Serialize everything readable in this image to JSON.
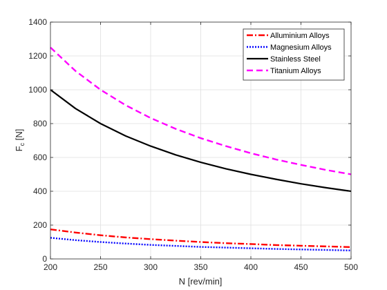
{
  "chart_data": {
    "type": "line",
    "xlabel": "N [rev/min]",
    "ylabel_main": "F",
    "ylabel_sub": "c",
    "ylabel_unit": " [N]",
    "xlim": [
      200,
      500
    ],
    "ylim": [
      0,
      1400
    ],
    "xticks": [
      200,
      250,
      300,
      350,
      400,
      450,
      500
    ],
    "yticks": [
      0,
      200,
      400,
      600,
      800,
      1000,
      1200,
      1400
    ],
    "grid": true,
    "legend_position": "top-right",
    "x": [
      200,
      225,
      250,
      275,
      300,
      325,
      350,
      375,
      400,
      425,
      450,
      475,
      500
    ],
    "series": [
      {
        "name": "Alluminium Alloys",
        "color": "#ff0000",
        "style": "dashdot",
        "values": [
          175,
          156,
          140,
          127,
          117,
          108,
          100,
          93,
          88,
          82,
          78,
          74,
          70
        ]
      },
      {
        "name": "Magnesium Alloys",
        "color": "#0000ff",
        "style": "dotted",
        "values": [
          125,
          111,
          100,
          91,
          83,
          77,
          71,
          67,
          63,
          59,
          56,
          53,
          50
        ]
      },
      {
        "name": "Stainless Steel",
        "color": "#000000",
        "style": "solid",
        "values": [
          1000,
          889,
          800,
          727,
          667,
          615,
          571,
          533,
          500,
          471,
          444,
          421,
          400
        ]
      },
      {
        "name": "Titanium Alloys",
        "color": "#ff00ff",
        "style": "dashed",
        "values": [
          1250,
          1111,
          1000,
          909,
          833,
          769,
          714,
          667,
          625,
          588,
          556,
          526,
          500
        ]
      }
    ]
  }
}
